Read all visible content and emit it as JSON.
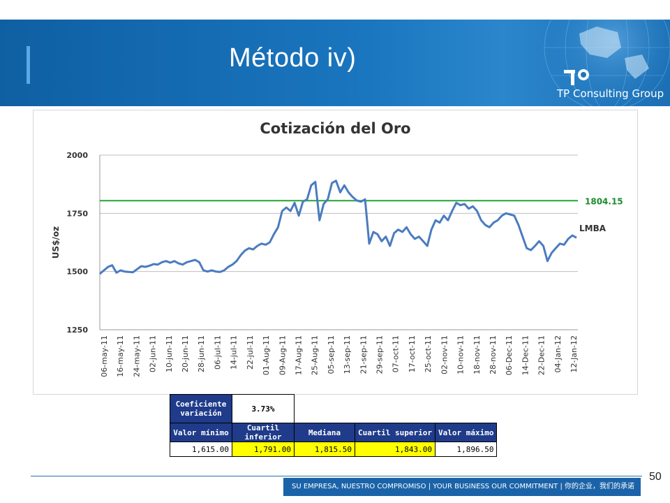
{
  "slide": {
    "title": "Método iv)",
    "brand": "TP Consulting Group",
    "page_number": "50",
    "footer_text": "SU EMPRESA, NUESTRO COMPROMISO | YOUR BUSINESS OUR COMMITMENT | 你的企业，我们的承诺"
  },
  "colors": {
    "header_blue": "#1a76bf",
    "series_line": "#4a7cc0",
    "reference_line": "#22a33a",
    "table_header": "#1f3b8a",
    "highlight": "#ffff00"
  },
  "chart_data": {
    "type": "line",
    "title": "Cotización del Oro",
    "xlabel": "",
    "ylabel": "US$/oz",
    "ylim": [
      1250,
      2000
    ],
    "yticks": [
      1250,
      1500,
      1750,
      2000
    ],
    "grid": true,
    "x_tick_labels": [
      "06-may-11",
      "16-may-11",
      "24-may-11",
      "02-jun-11",
      "10-jun-11",
      "20-jun-11",
      "28-jun-11",
      "06-jul-11",
      "14-jul-11",
      "22-jul-11",
      "01-Aug-11",
      "09-Aug-11",
      "17-Aug-11",
      "25-Aug-11",
      "05-sep-11",
      "13-sep-11",
      "21-sep-11",
      "29-sep-11",
      "07-oct-11",
      "17-oct-11",
      "25-oct-11",
      "02-nov-11",
      "10-nov-11",
      "18-nov-11",
      "28-nov-11",
      "06-Dec-11",
      "14-Dec-11",
      "22-Dec-11",
      "04-Jan-12",
      "12-Jan-12"
    ],
    "series": [
      {
        "name": "LMBA",
        "values": [
          1490,
          1505,
          1520,
          1527,
          1495,
          1505,
          1500,
          1498,
          1497,
          1510,
          1523,
          1520,
          1525,
          1532,
          1530,
          1540,
          1545,
          1538,
          1545,
          1535,
          1530,
          1540,
          1545,
          1550,
          1540,
          1505,
          1500,
          1505,
          1500,
          1498,
          1505,
          1520,
          1530,
          1545,
          1570,
          1590,
          1600,
          1595,
          1610,
          1620,
          1615,
          1625,
          1660,
          1690,
          1760,
          1775,
          1760,
          1795,
          1740,
          1800,
          1810,
          1870,
          1885,
          1720,
          1790,
          1810,
          1880,
          1890,
          1840,
          1870,
          1840,
          1820,
          1805,
          1800,
          1810,
          1620,
          1670,
          1660,
          1630,
          1650,
          1610,
          1665,
          1680,
          1670,
          1690,
          1660,
          1640,
          1650,
          1630,
          1610,
          1680,
          1720,
          1710,
          1740,
          1720,
          1760,
          1795,
          1785,
          1790,
          1770,
          1780,
          1760,
          1720,
          1700,
          1690,
          1710,
          1720,
          1740,
          1750,
          1745,
          1740,
          1700,
          1650,
          1600,
          1592,
          1610,
          1630,
          1610,
          1545,
          1580,
          1600,
          1620,
          1615,
          1640,
          1655,
          1645
        ]
      }
    ],
    "reference_line": {
      "value": 1804.15,
      "label": "1804.15"
    },
    "series_label": "LMBA"
  },
  "stats": {
    "cv_label_1": "Coeficiente",
    "cv_label_2": "variación",
    "cv_value": "3.73%",
    "headers": [
      "Valor mínimo",
      "Cuartil inferior",
      "Mediana",
      "Cuartil superior",
      "Valor máximo"
    ],
    "values": [
      "1,615.00",
      "1,791.00",
      "1,815.50",
      "1,843.00",
      "1,896.50"
    ]
  }
}
